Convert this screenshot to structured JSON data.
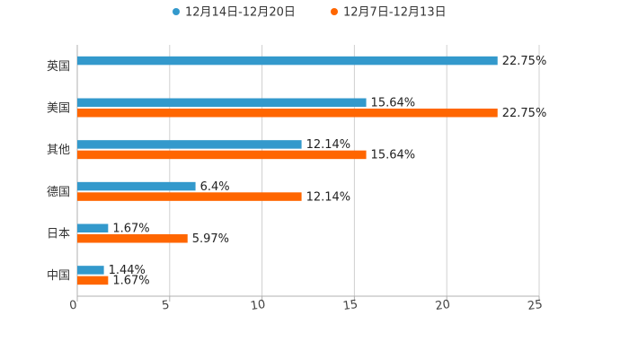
{
  "chart_data": {
    "type": "bar",
    "orientation": "horizontal",
    "title": "",
    "xlabel": "",
    "ylabel": "",
    "xlim": [
      0,
      25
    ],
    "ticks": [
      0,
      5,
      10,
      15,
      20,
      25
    ],
    "grid": true,
    "legend_position": "top",
    "categories": [
      "英国",
      "美国",
      "其他",
      "德国",
      "日本",
      "中国"
    ],
    "series": [
      {
        "name": "12月14日-12月20日",
        "color": "#3399cc",
        "values": [
          22.75,
          15.64,
          12.14,
          6.4,
          1.67,
          1.44
        ],
        "labels": [
          "22.75%",
          "15.64%",
          "12.14%",
          "6.4%",
          "1.67%",
          "1.44%"
        ]
      },
      {
        "name": "12月7日-12月13日",
        "color": "#ff6600",
        "values": [
          null,
          22.75,
          15.64,
          12.14,
          5.97,
          1.67
        ],
        "labels": [
          "",
          "22.75%",
          "15.64%",
          "12.14%",
          "5.97%",
          "1.67%"
        ]
      }
    ]
  }
}
